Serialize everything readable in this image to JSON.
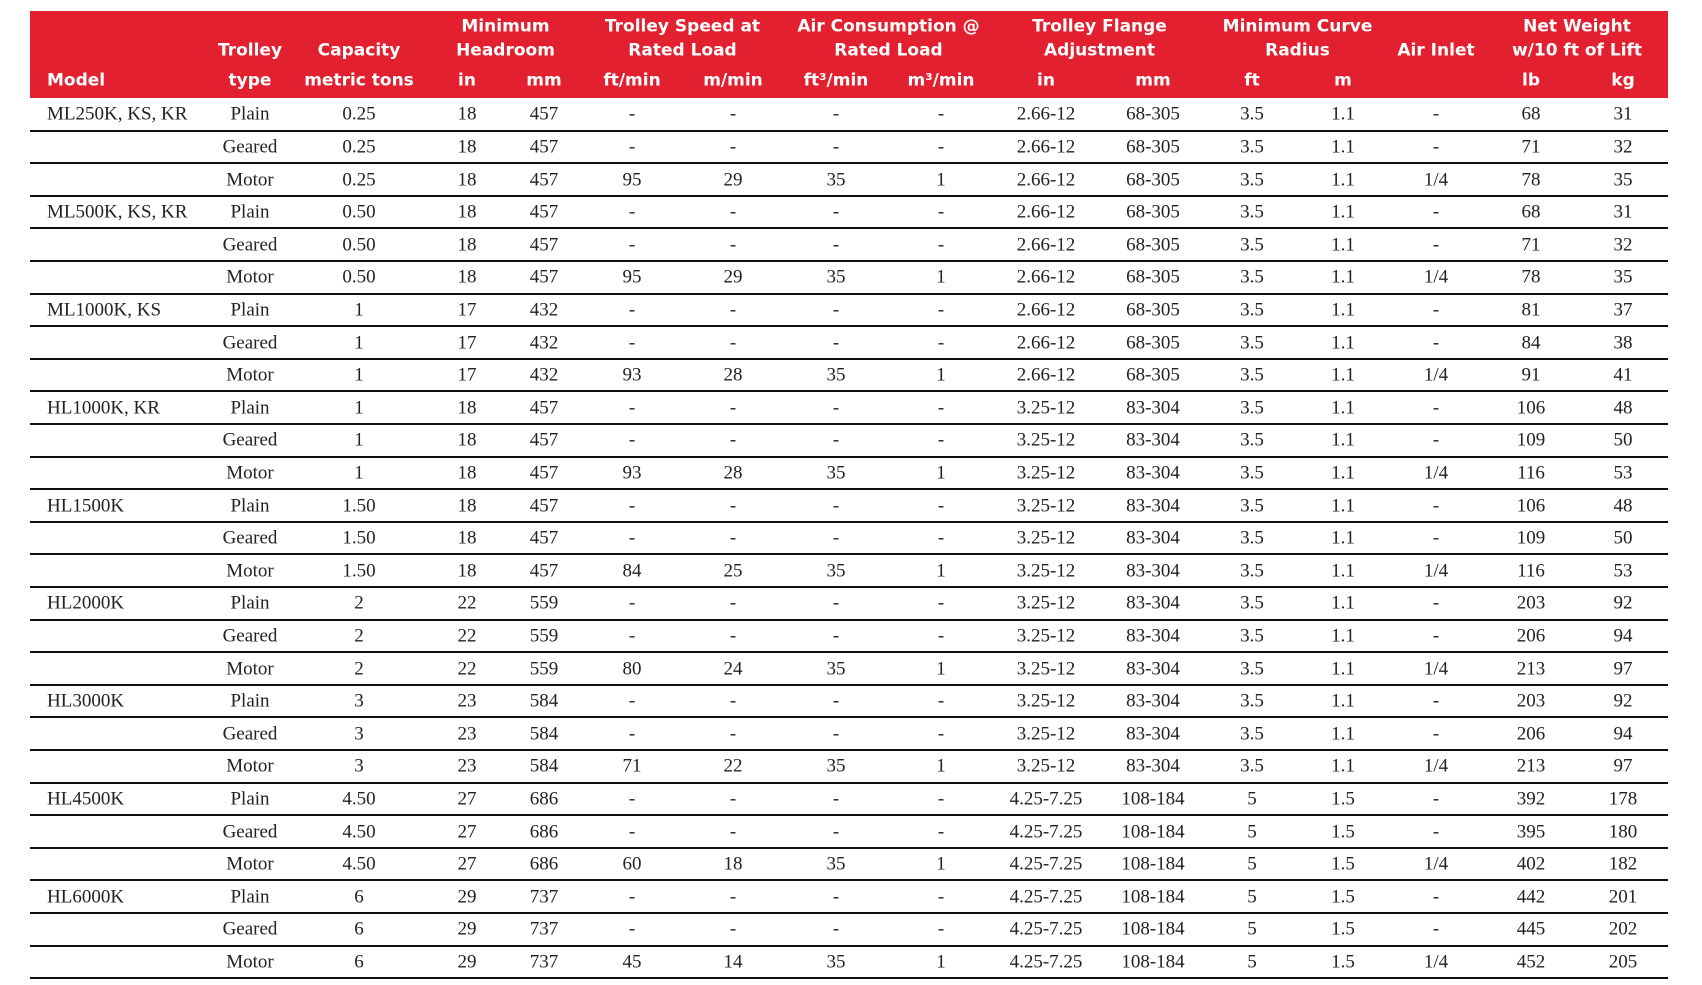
{
  "table": {
    "header": {
      "model": "Model",
      "groups": [
        {
          "lines": [
            "Trolley",
            "type"
          ]
        },
        {
          "lines": [
            "Capacity",
            "metric tons"
          ]
        },
        {
          "lines": [
            "Minimum",
            "Headroom"
          ]
        },
        {
          "lines": [
            "Trolley Speed at",
            "Rated Load"
          ]
        },
        {
          "lines": [
            "Air Consumption @",
            "Rated Load"
          ]
        },
        {
          "lines": [
            "Trolley Flange",
            "Adjustment"
          ]
        },
        {
          "lines": [
            "Minimum Curve",
            "Radius"
          ]
        },
        {
          "lines": [
            "Air Inlet"
          ]
        },
        {
          "lines": [
            "Net Weight",
            "w/10 ft of Lift"
          ]
        }
      ],
      "units": [
        "in",
        "mm",
        "ft/min",
        "m/min",
        "ft³/min",
        "m³/min",
        "in",
        "mm",
        "ft",
        "m",
        "lb",
        "kg"
      ]
    },
    "rows": [
      [
        "ML250K, KS, KR",
        "Plain",
        "0.25",
        "18",
        "457",
        "-",
        "-",
        "-",
        "-",
        "2.66-12",
        "68-305",
        "3.5",
        "1.1",
        "-",
        "68",
        "31"
      ],
      [
        null,
        "Geared",
        "0.25",
        "18",
        "457",
        "-",
        "-",
        "-",
        "-",
        "2.66-12",
        "68-305",
        "3.5",
        "1.1",
        "-",
        "71",
        "32"
      ],
      [
        null,
        "Motor",
        "0.25",
        "18",
        "457",
        "95",
        "29",
        "35",
        "1",
        "2.66-12",
        "68-305",
        "3.5",
        "1.1",
        "1/4",
        "78",
        "35"
      ],
      [
        "ML500K, KS, KR",
        "Plain",
        "0.50",
        "18",
        "457",
        "-",
        "-",
        "-",
        "-",
        "2.66-12",
        "68-305",
        "3.5",
        "1.1",
        "-",
        "68",
        "31"
      ],
      [
        null,
        "Geared",
        "0.50",
        "18",
        "457",
        "-",
        "-",
        "-",
        "-",
        "2.66-12",
        "68-305",
        "3.5",
        "1.1",
        "-",
        "71",
        "32"
      ],
      [
        null,
        "Motor",
        "0.50",
        "18",
        "457",
        "95",
        "29",
        "35",
        "1",
        "2.66-12",
        "68-305",
        "3.5",
        "1.1",
        "1/4",
        "78",
        "35"
      ],
      [
        "ML1000K, KS",
        "Plain",
        "1",
        "17",
        "432",
        "-",
        "-",
        "-",
        "-",
        "2.66-12",
        "68-305",
        "3.5",
        "1.1",
        "-",
        "81",
        "37"
      ],
      [
        null,
        "Geared",
        "1",
        "17",
        "432",
        "-",
        "-",
        "-",
        "-",
        "2.66-12",
        "68-305",
        "3.5",
        "1.1",
        "-",
        "84",
        "38"
      ],
      [
        null,
        "Motor",
        "1",
        "17",
        "432",
        "93",
        "28",
        "35",
        "1",
        "2.66-12",
        "68-305",
        "3.5",
        "1.1",
        "1/4",
        "91",
        "41"
      ],
      [
        "HL1000K, KR",
        "Plain",
        "1",
        "18",
        "457",
        "-",
        "-",
        "-",
        "-",
        "3.25-12",
        "83-304",
        "3.5",
        "1.1",
        "-",
        "106",
        "48"
      ],
      [
        null,
        "Geared",
        "1",
        "18",
        "457",
        "-",
        "-",
        "-",
        "-",
        "3.25-12",
        "83-304",
        "3.5",
        "1.1",
        "-",
        "109",
        "50"
      ],
      [
        null,
        "Motor",
        "1",
        "18",
        "457",
        "93",
        "28",
        "35",
        "1",
        "3.25-12",
        "83-304",
        "3.5",
        "1.1",
        "1/4",
        "116",
        "53"
      ],
      [
        "HL1500K",
        "Plain",
        "1.50",
        "18",
        "457",
        "-",
        "-",
        "-",
        "-",
        "3.25-12",
        "83-304",
        "3.5",
        "1.1",
        "-",
        "106",
        "48"
      ],
      [
        null,
        "Geared",
        "1.50",
        "18",
        "457",
        "-",
        "-",
        "-",
        "-",
        "3.25-12",
        "83-304",
        "3.5",
        "1.1",
        "-",
        "109",
        "50"
      ],
      [
        null,
        "Motor",
        "1.50",
        "18",
        "457",
        "84",
        "25",
        "35",
        "1",
        "3.25-12",
        "83-304",
        "3.5",
        "1.1",
        "1/4",
        "116",
        "53"
      ],
      [
        "HL2000K",
        "Plain",
        "2",
        "22",
        "559",
        "-",
        "-",
        "-",
        "-",
        "3.25-12",
        "83-304",
        "3.5",
        "1.1",
        "-",
        "203",
        "92"
      ],
      [
        null,
        "Geared",
        "2",
        "22",
        "559",
        "-",
        "-",
        "-",
        "-",
        "3.25-12",
        "83-304",
        "3.5",
        "1.1",
        "-",
        "206",
        "94"
      ],
      [
        null,
        "Motor",
        "2",
        "22",
        "559",
        "80",
        "24",
        "35",
        "1",
        "3.25-12",
        "83-304",
        "3.5",
        "1.1",
        "1/4",
        "213",
        "97"
      ],
      [
        "HL3000K",
        "Plain",
        "3",
        "23",
        "584",
        "-",
        "-",
        "-",
        "-",
        "3.25-12",
        "83-304",
        "3.5",
        "1.1",
        "-",
        "203",
        "92"
      ],
      [
        null,
        "Geared",
        "3",
        "23",
        "584",
        "-",
        "-",
        "-",
        "-",
        "3.25-12",
        "83-304",
        "3.5",
        "1.1",
        "-",
        "206",
        "94"
      ],
      [
        null,
        "Motor",
        "3",
        "23",
        "584",
        "71",
        "22",
        "35",
        "1",
        "3.25-12",
        "83-304",
        "3.5",
        "1.1",
        "1/4",
        "213",
        "97"
      ],
      [
        "HL4500K",
        "Plain",
        "4.50",
        "27",
        "686",
        "-",
        "-",
        "-",
        "-",
        "4.25-7.25",
        "108-184",
        "5",
        "1.5",
        "-",
        "392",
        "178"
      ],
      [
        null,
        "Geared",
        "4.50",
        "27",
        "686",
        "-",
        "-",
        "-",
        "-",
        "4.25-7.25",
        "108-184",
        "5",
        "1.5",
        "-",
        "395",
        "180"
      ],
      [
        null,
        "Motor",
        "4.50",
        "27",
        "686",
        "60",
        "18",
        "35",
        "1",
        "4.25-7.25",
        "108-184",
        "5",
        "1.5",
        "1/4",
        "402",
        "182"
      ],
      [
        "HL6000K",
        "Plain",
        "6",
        "29",
        "737",
        "-",
        "-",
        "-",
        "-",
        "4.25-7.25",
        "108-184",
        "5",
        "1.5",
        "-",
        "442",
        "201"
      ],
      [
        null,
        "Geared",
        "6",
        "29",
        "737",
        "-",
        "-",
        "-",
        "-",
        "4.25-7.25",
        "108-184",
        "5",
        "1.5",
        "-",
        "445",
        "202"
      ],
      [
        null,
        "Motor",
        "6",
        "29",
        "737",
        "45",
        "14",
        "35",
        "1",
        "4.25-7.25",
        "108-184",
        "5",
        "1.5",
        "1/4",
        "452",
        "205"
      ]
    ]
  }
}
